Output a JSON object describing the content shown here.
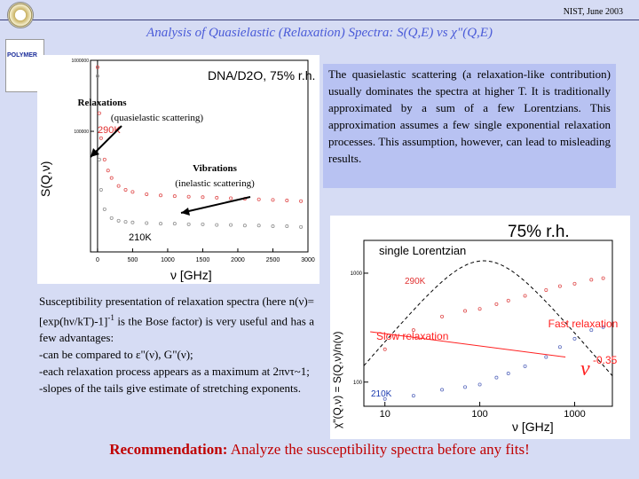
{
  "header": {
    "date": "NIST, June 2003",
    "title": "Analysis of Quasielastic (Relaxation) Spectra: S(Q,E) vs χ\"(Q,E)",
    "logo_text": "POLYMER"
  },
  "description": "The quasielastic scattering (a relaxation-like contribution) usually dominates the spectra at higher T. It is traditionally approximated by a sum of a few Lorentzians. This approximation assumes a few single exponential relaxation processes. This assumption, however, can lead to misleading results.",
  "susceptibility": {
    "line1": "Susceptibility presentation of relaxation spectra (here n(ν)=[exp(hν/kT)-1]",
    "sup": "-1",
    "line1_end": " is the Bose factor) is very useful and has a few advantages:",
    "item1": "-can be compared to ε\"(ν), G\"(ν);",
    "item2": "-each relaxation process appears as a maximum at 2πντ~1;",
    "item3": "-slopes of the tails give estimate of stretching exponents."
  },
  "recommendation": {
    "label": "Recommendation:",
    "text": " Analyze the susceptibility spectra before any fits!"
  },
  "colors": {
    "accent": "#4a5bd8",
    "red": "#c00000",
    "series_290K": "#e05050",
    "series_210K": "#a0a0a0",
    "slow": "#ff2020",
    "fast": "#ff2020"
  },
  "chart_data": [
    {
      "type": "scatter",
      "title": "DNA/D2O, 75% r.h.",
      "xlabel": "ν [GHz]",
      "ylabel": "S(Q,ν)",
      "x_ticks": [
        "0",
        "500",
        "1000",
        "1500",
        "2000",
        "2500",
        "3000"
      ],
      "y_ticks": [
        "1000000",
        "100000"
      ],
      "xlim": [
        -100,
        3000
      ],
      "scale_y": "log",
      "annotations": {
        "relaxations": "Relaxations",
        "relaxations_sub": "(quasielastic scattering)",
        "vibrations": "Vibrations",
        "vibrations_sub": "(inelastic scattering)",
        "label_290": "290K",
        "label_210": "210K"
      },
      "series": [
        {
          "name": "290K",
          "x": [
            0,
            25,
            50,
            100,
            150,
            200,
            300,
            400,
            500,
            700,
            900,
            1100,
            1300,
            1500,
            1700,
            1900,
            2100,
            2300,
            2500,
            2700,
            2900
          ],
          "y": [
            800000,
            180000,
            80000,
            40000,
            28000,
            22000,
            17000,
            15000,
            14000,
            13000,
            12500,
            12200,
            12000,
            11800,
            11600,
            11400,
            11200,
            11000,
            10800,
            10600,
            10400
          ]
        },
        {
          "name": "210K",
          "x": [
            0,
            25,
            50,
            100,
            200,
            300,
            400,
            500,
            700,
            900,
            1100,
            1300,
            1500,
            1700,
            1900,
            2100,
            2300,
            2500,
            2700,
            2900
          ],
          "y": [
            600000,
            40000,
            15000,
            8000,
            6000,
            5500,
            5300,
            5200,
            5100,
            5000,
            5000,
            4900,
            4900,
            4800,
            4800,
            4700,
            4700,
            4600,
            4600,
            4500
          ]
        }
      ]
    },
    {
      "type": "scatter",
      "title": "75% r.h.",
      "xlabel": "ν [GHz]",
      "ylabel": "χ\"(Q,ν) = S(Q,ν)/n(ν)",
      "x_ticks": [
        "10",
        "100",
        "1000"
      ],
      "y_ticks": [
        "1000",
        "100"
      ],
      "scale_x": "log",
      "scale_y": "log",
      "xlim": [
        6,
        2500
      ],
      "ylim": [
        60,
        2000
      ],
      "annotations": {
        "single_lorentzian": "single Lorentzian",
        "slow": "Slow relaxation",
        "fast": "Fast relaxation",
        "power_base": "ν",
        "power_exp": "-0.35",
        "label_290": "290K",
        "label_210": "210K"
      },
      "series": [
        {
          "name": "290K",
          "x": [
            10,
            20,
            40,
            70,
            100,
            150,
            200,
            300,
            500,
            700,
            1000,
            1500,
            2000
          ],
          "y": [
            200,
            300,
            400,
            450,
            470,
            520,
            560,
            620,
            700,
            760,
            800,
            870,
            900
          ]
        },
        {
          "name": "210K",
          "x": [
            10,
            20,
            40,
            70,
            100,
            150,
            200,
            300,
            500,
            700,
            1000,
            1500,
            2000
          ],
          "y": [
            70,
            75,
            85,
            90,
            95,
            110,
            120,
            140,
            170,
            210,
            250,
            300,
            320
          ]
        }
      ]
    }
  ]
}
